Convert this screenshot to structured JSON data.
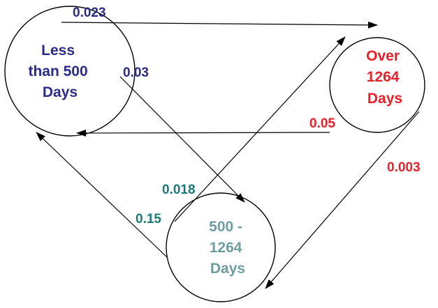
{
  "nodes": {
    "less_than_500": {
      "lines": [
        "Less",
        "than 500",
        "Days"
      ],
      "color": "#2b2b8c"
    },
    "over_1264": {
      "lines": [
        "Over",
        "1264",
        "Days"
      ],
      "color": "#e8202a"
    },
    "mid_500_1264": {
      "lines": [
        "500 -",
        "1264",
        "Days"
      ],
      "color": "#6f9e9e"
    }
  },
  "edges": {
    "less_to_over": {
      "label": "0.023",
      "color": "#2b2b8c"
    },
    "less_to_mid": {
      "label": "0.03",
      "color": "#2b2b8c"
    },
    "over_to_less": {
      "label": "0.05",
      "color": "#e8202a"
    },
    "over_to_mid": {
      "label": "0.003",
      "color": "#e8202a"
    },
    "mid_to_over": {
      "label": "0.018",
      "color": "#1a7a7a"
    },
    "mid_to_less": {
      "label": "0.15",
      "color": "#1a7a7a"
    }
  },
  "line_color": "#000000"
}
